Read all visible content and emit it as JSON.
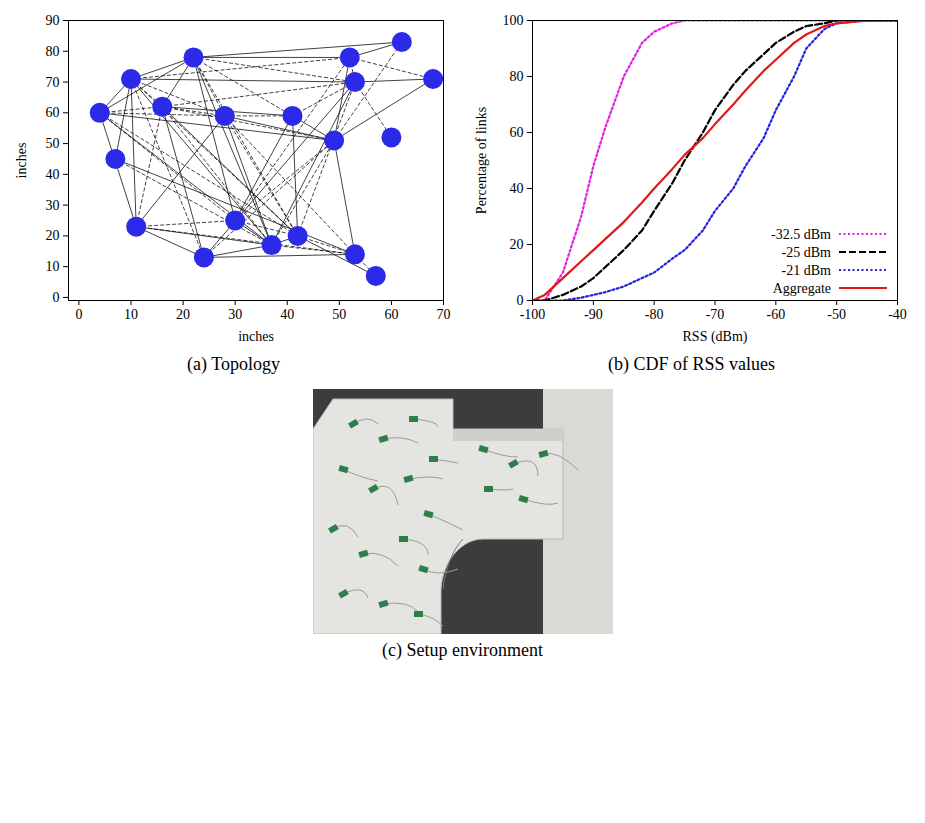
{
  "chart_data": [
    {
      "type": "network",
      "caption": "(a) Topology",
      "x_label": "inches",
      "y_label": "inches",
      "xlim": [
        -2,
        70
      ],
      "xticks": [
        0,
        10,
        20,
        30,
        40,
        50,
        60,
        70
      ],
      "ylim": [
        -1,
        90
      ],
      "yticks": [
        0,
        10,
        20,
        30,
        40,
        50,
        60,
        70,
        80,
        90
      ],
      "color": "#2a2ae8",
      "nodes": {
        "x": [
          4,
          7,
          10,
          11,
          16,
          22,
          24,
          28,
          30,
          37,
          41,
          42,
          49,
          52,
          53,
          53,
          57,
          60,
          62,
          68
        ],
        "y": [
          60,
          45,
          71,
          23,
          62,
          78,
          13,
          59,
          25,
          17,
          59,
          20,
          51,
          78,
          70,
          14,
          7,
          52,
          83,
          71
        ]
      },
      "links": [
        [
          0,
          2
        ],
        [
          0,
          4
        ],
        [
          0,
          5
        ],
        [
          0,
          7
        ],
        [
          0,
          3
        ],
        [
          0,
          8
        ],
        [
          0,
          9
        ],
        [
          0,
          11
        ],
        [
          1,
          2
        ],
        [
          1,
          9
        ],
        [
          1,
          15
        ],
        [
          2,
          4
        ],
        [
          2,
          5
        ],
        [
          2,
          7
        ],
        [
          2,
          3
        ],
        [
          2,
          6
        ],
        [
          2,
          9
        ],
        [
          2,
          13
        ],
        [
          2,
          14
        ],
        [
          3,
          4
        ],
        [
          3,
          6
        ],
        [
          3,
          8
        ],
        [
          3,
          7
        ],
        [
          3,
          15
        ],
        [
          4,
          5
        ],
        [
          4,
          7
        ],
        [
          4,
          10
        ],
        [
          4,
          9
        ],
        [
          4,
          11
        ],
        [
          4,
          12
        ],
        [
          4,
          6
        ],
        [
          5,
          7
        ],
        [
          5,
          13
        ],
        [
          5,
          14
        ],
        [
          5,
          18
        ],
        [
          5,
          10
        ],
        [
          5,
          9
        ],
        [
          5,
          11
        ],
        [
          5,
          8
        ],
        [
          7,
          10
        ],
        [
          7,
          9
        ],
        [
          7,
          11
        ],
        [
          7,
          12
        ],
        [
          7,
          15
        ],
        [
          8,
          9
        ],
        [
          8,
          11
        ],
        [
          8,
          10
        ],
        [
          8,
          13
        ],
        [
          9,
          11
        ],
        [
          9,
          12
        ],
        [
          9,
          14
        ],
        [
          9,
          15
        ],
        [
          10,
          12
        ],
        [
          10,
          14
        ],
        [
          10,
          11
        ],
        [
          11,
          15
        ],
        [
          11,
          16
        ],
        [
          11,
          14
        ],
        [
          12,
          13
        ],
        [
          12,
          18
        ],
        [
          12,
          19
        ],
        [
          13,
          14
        ],
        [
          13,
          18
        ],
        [
          13,
          19
        ],
        [
          14,
          19
        ],
        [
          14,
          17
        ],
        [
          6,
          9
        ],
        [
          6,
          12
        ],
        [
          6,
          15
        ],
        [
          15,
          16
        ],
        [
          3,
          9
        ],
        [
          2,
          11
        ],
        [
          0,
          12
        ],
        [
          4,
          14
        ],
        [
          6,
          14
        ],
        [
          8,
          12
        ],
        [
          12,
          15
        ]
      ]
    },
    {
      "type": "line",
      "caption": "(b) CDF of RSS values",
      "x_label": "RSS (dBm)",
      "y_label": "Percentage of links",
      "xlim": [
        -100,
        -40
      ],
      "xticks": [
        -100,
        -90,
        -80,
        -70,
        -60,
        -50,
        -40
      ],
      "ylim": [
        0,
        100
      ],
      "yticks": [
        0,
        20,
        40,
        60,
        80,
        100
      ],
      "legend": "bottom-right",
      "x": [
        -100,
        -98,
        -95,
        -92,
        -90,
        -88,
        -85,
        -82,
        -80,
        -77,
        -75,
        -72,
        -70,
        -67,
        -65,
        -62,
        -60,
        -57,
        -55,
        -52,
        -50,
        -45,
        -40
      ],
      "series": [
        {
          "name": "-32.5 dBm",
          "color": "#e022e0",
          "line_style": "dotted",
          "values": [
            0,
            0,
            10,
            30,
            48,
            62,
            80,
            92,
            96,
            99,
            100,
            100,
            100,
            100,
            100,
            100,
            100,
            100,
            100,
            100,
            100,
            100,
            100
          ]
        },
        {
          "name": "-25 dBm",
          "color": "#000000",
          "line_style": "dashed",
          "values": [
            0,
            0,
            2,
            5,
            8,
            12,
            18,
            25,
            32,
            42,
            50,
            60,
            68,
            77,
            82,
            88,
            92,
            96,
            98,
            99,
            100,
            100,
            100
          ]
        },
        {
          "name": "-21 dBm",
          "color": "#2222dd",
          "line_style": "dotted",
          "values": [
            0,
            0,
            0,
            1,
            2,
            3,
            5,
            8,
            10,
            15,
            18,
            25,
            32,
            40,
            48,
            58,
            68,
            80,
            90,
            97,
            99,
            100,
            100
          ]
        },
        {
          "name": "Aggregate",
          "color": "#e01818",
          "line_style": "solid",
          "values": [
            0,
            2,
            8,
            14,
            18,
            22,
            28,
            35,
            40,
            47,
            52,
            58,
            63,
            70,
            75,
            82,
            86,
            92,
            95,
            98,
            99,
            100,
            100
          ]
        }
      ]
    },
    {
      "type": "image",
      "caption": "(c) Setup environment"
    }
  ]
}
